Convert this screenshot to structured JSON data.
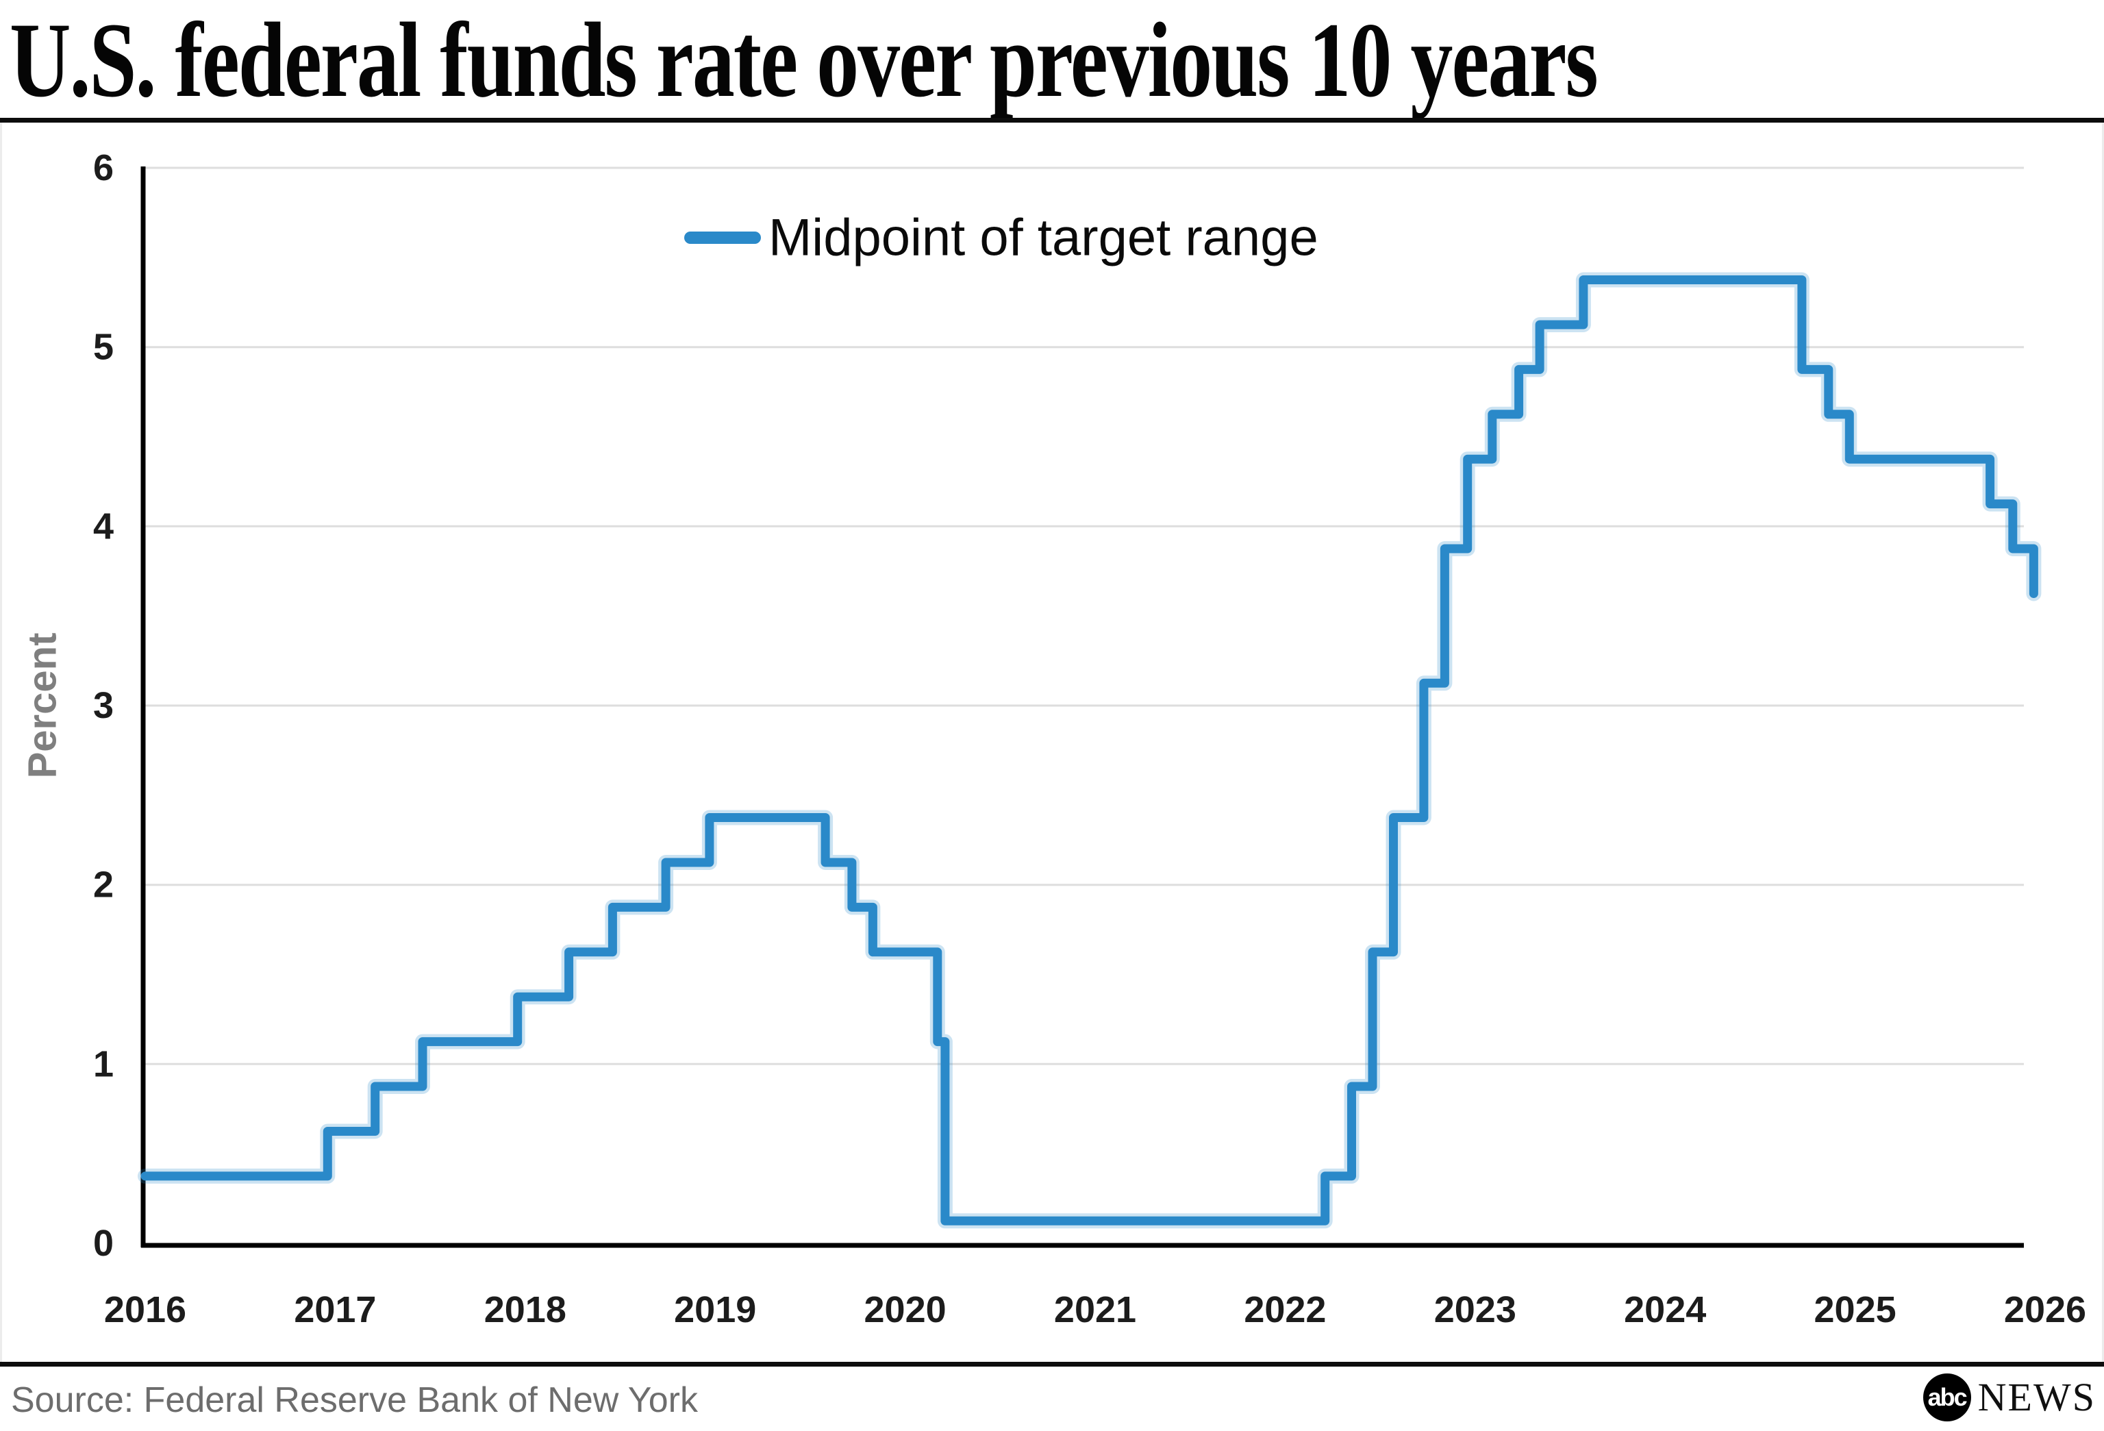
{
  "header": {
    "title": "U.S. federal funds rate over previous 10 years"
  },
  "footer": {
    "source": "Source: Federal Reserve Bank of New York",
    "logo_abc": "abc",
    "logo_news": "NEWS"
  },
  "colors": {
    "line": "#2a89c9",
    "line_halo": "rgba(42,137,201,0.24)",
    "grid": "#dedede",
    "axis": "#000000",
    "tick_text": "#1c1c1c",
    "ylabel_text": "#7f7f7f",
    "source_text": "#6d6d6d",
    "rule": "#0d0d0d"
  },
  "chart_data": {
    "type": "line",
    "style": "step-after",
    "legend": {
      "label": "Midpoint of target range",
      "position": "top-center"
    },
    "ylabel": "Percent",
    "xlabel": "",
    "ylim": [
      0,
      6
    ],
    "xlim": [
      2016,
      2026
    ],
    "yticks": [
      0,
      1,
      2,
      3,
      4,
      5,
      6
    ],
    "xticks": [
      2016,
      2017,
      2018,
      2019,
      2020,
      2021,
      2022,
      2023,
      2024,
      2025,
      2026
    ],
    "grid": "horizontal",
    "series": [
      {
        "name": "Midpoint of target range",
        "points": [
          [
            2016.0,
            0.375
          ],
          [
            2016.96,
            0.625
          ],
          [
            2017.21,
            0.875
          ],
          [
            2017.46,
            1.125
          ],
          [
            2017.96,
            1.375
          ],
          [
            2018.23,
            1.625
          ],
          [
            2018.46,
            1.875
          ],
          [
            2018.74,
            2.125
          ],
          [
            2018.97,
            2.375
          ],
          [
            2019.58,
            2.125
          ],
          [
            2019.72,
            1.875
          ],
          [
            2019.83,
            1.625
          ],
          [
            2020.17,
            1.125
          ],
          [
            2020.21,
            0.125
          ],
          [
            2022.21,
            0.375
          ],
          [
            2022.35,
            0.875
          ],
          [
            2022.46,
            1.625
          ],
          [
            2022.57,
            2.375
          ],
          [
            2022.73,
            3.125
          ],
          [
            2022.84,
            3.875
          ],
          [
            2022.96,
            4.375
          ],
          [
            2023.09,
            4.625
          ],
          [
            2023.23,
            4.875
          ],
          [
            2023.34,
            5.125
          ],
          [
            2023.57,
            5.375
          ],
          [
            2024.72,
            4.875
          ],
          [
            2024.86,
            4.625
          ],
          [
            2024.97,
            4.375
          ],
          [
            2025.71,
            4.125
          ],
          [
            2025.83,
            3.875
          ],
          [
            2025.94,
            3.625
          ]
        ]
      }
    ]
  }
}
